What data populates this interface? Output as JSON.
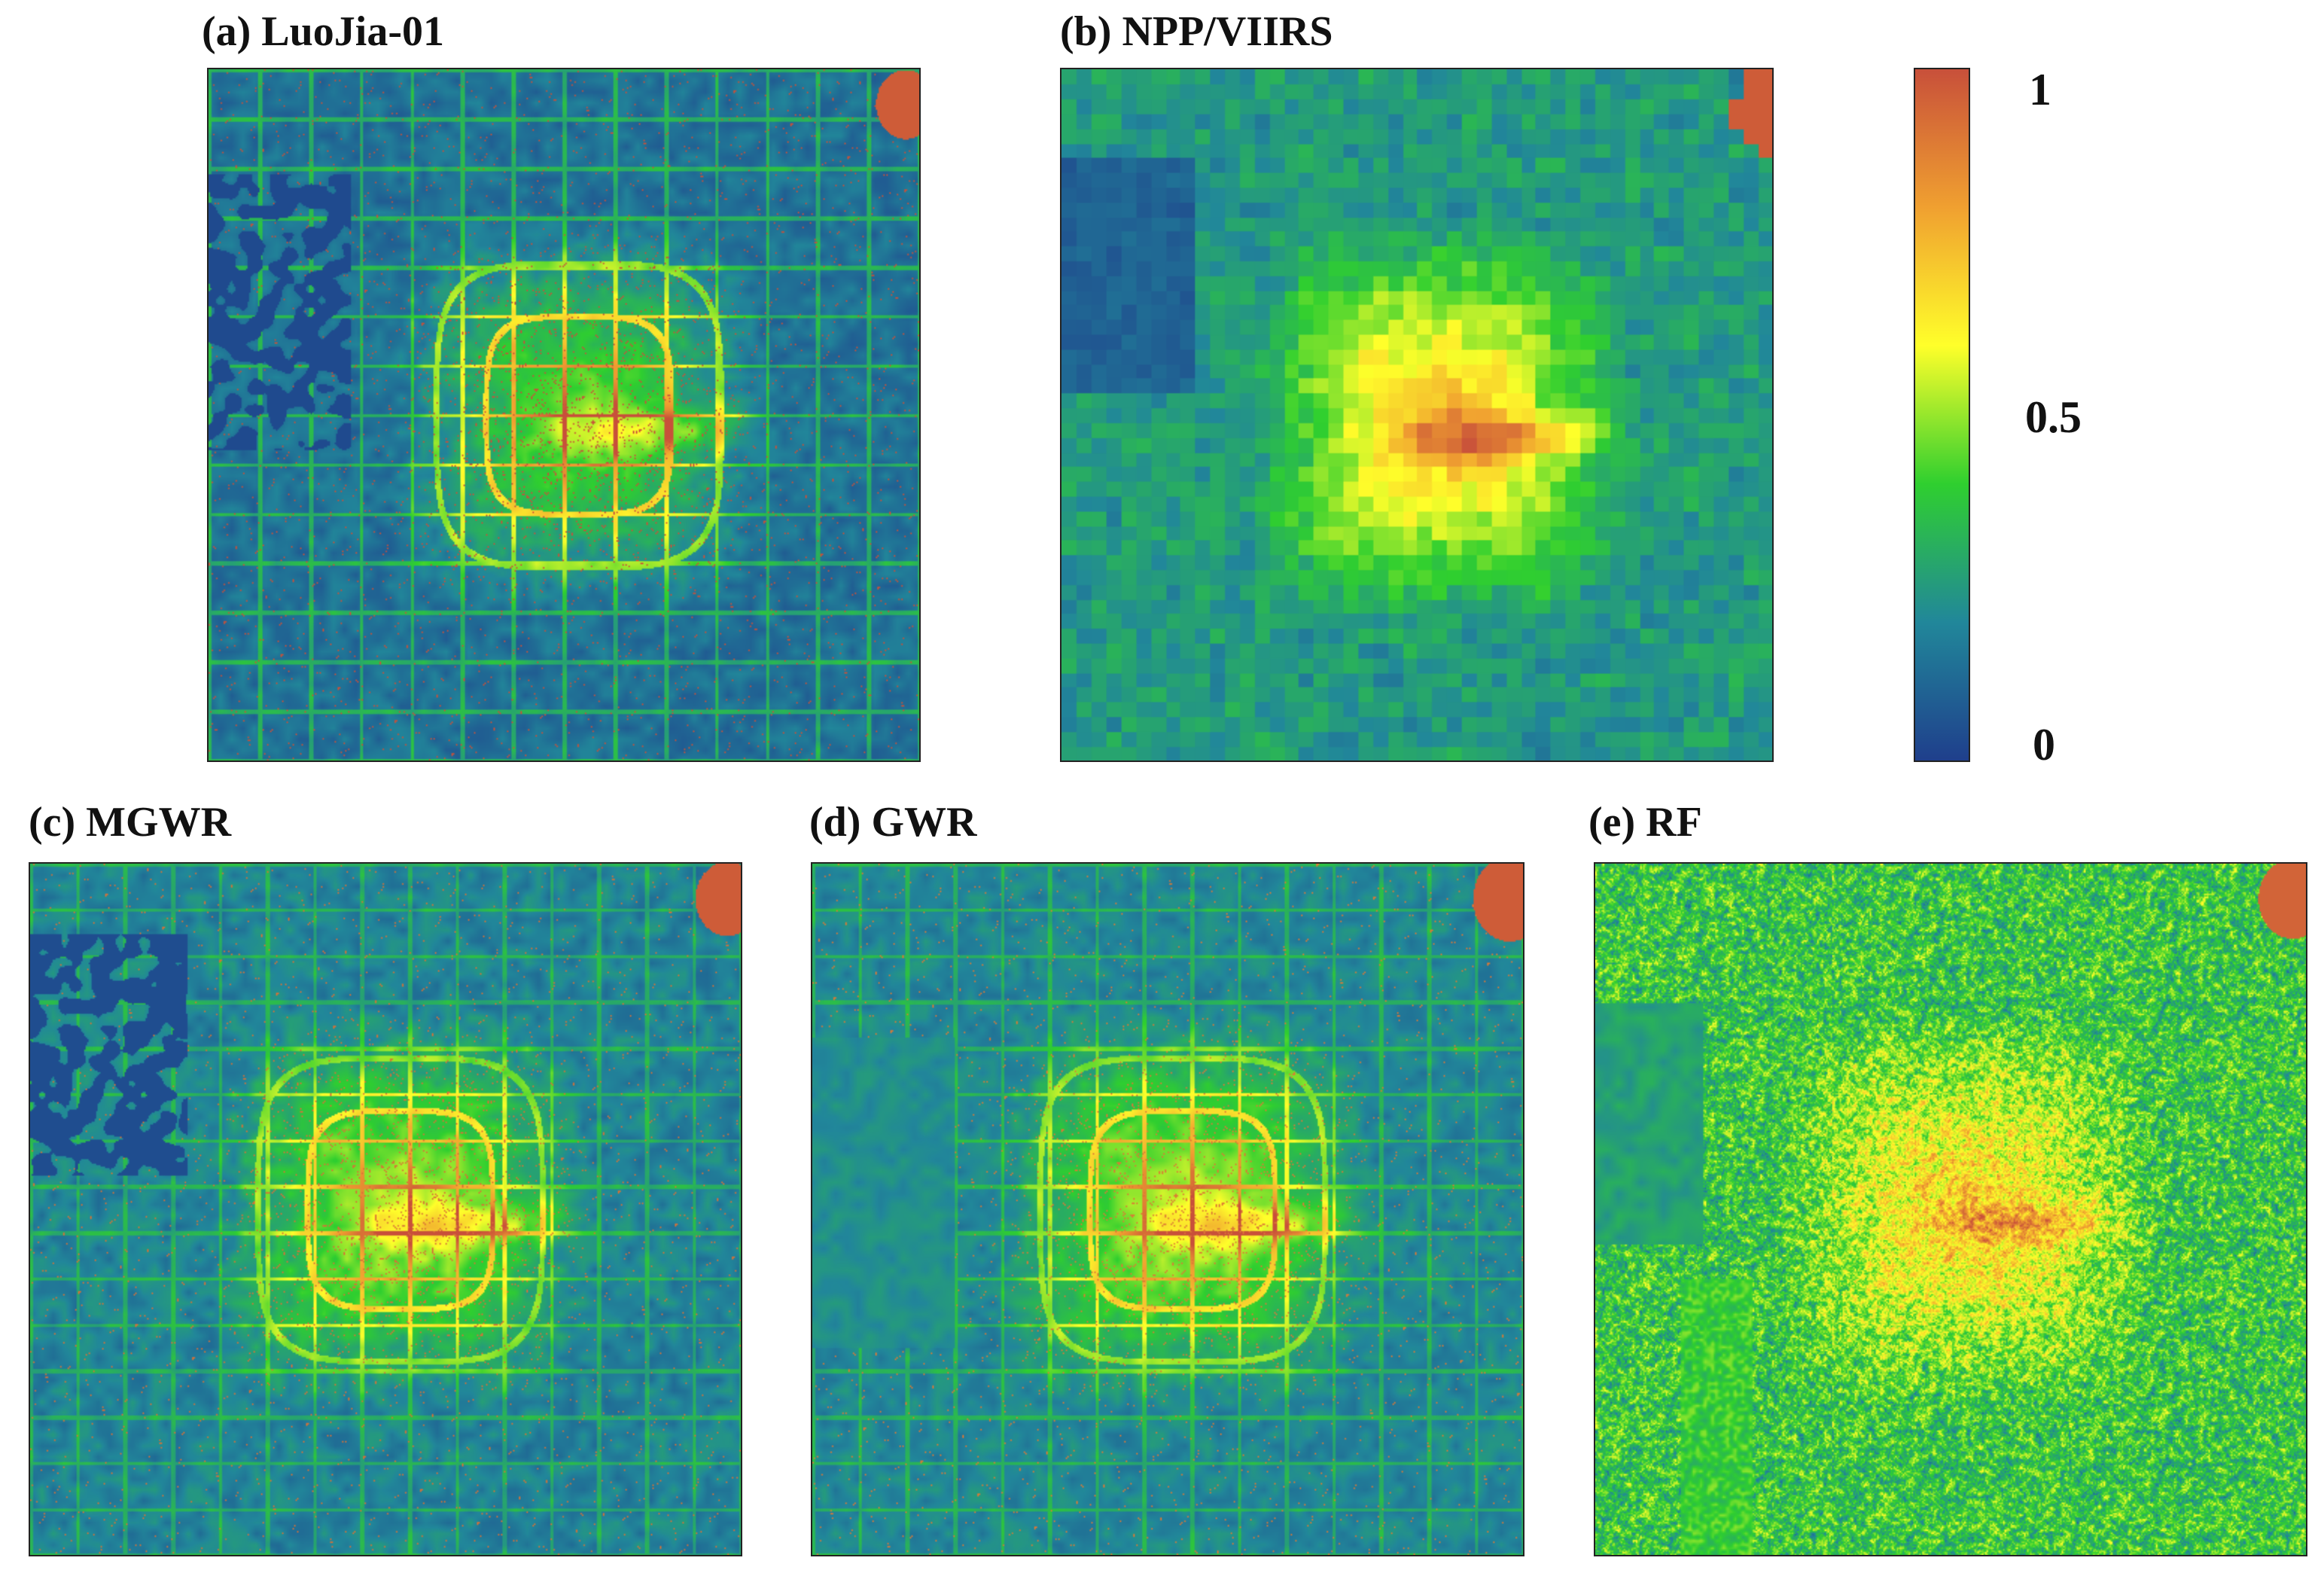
{
  "panels": [
    {
      "id": "a",
      "title": "(a) LuoJia-01",
      "style": "luojia"
    },
    {
      "id": "b",
      "title": "(b) NPP/VIIRS",
      "style": "viirs"
    },
    {
      "id": "c",
      "title": "(c) MGWR",
      "style": "mgwr"
    },
    {
      "id": "d",
      "title": "(d) GWR",
      "style": "gwr"
    },
    {
      "id": "e",
      "title": "(e) RF",
      "style": "rf"
    }
  ],
  "colorbar": {
    "ticks": [
      "1",
      "0.5",
      "0"
    ],
    "min": 0,
    "max": 1,
    "colors": [
      "#1f3f8c",
      "#21879a",
      "#2fcf2f",
      "#ffff2a",
      "#f0a030",
      "#c8503a"
    ]
  }
}
